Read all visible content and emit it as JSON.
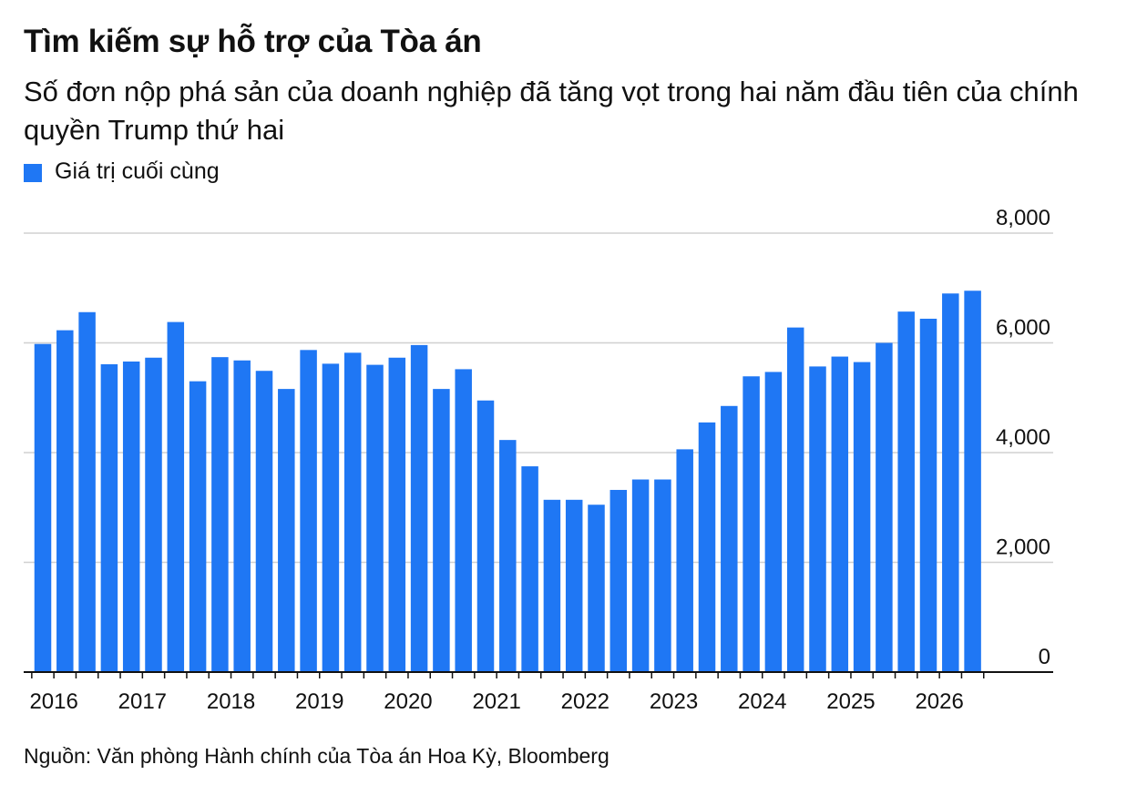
{
  "header": {
    "title": "Tìm kiếm sự hỗ trợ của Tòa án",
    "subtitle": "Số đơn nộp phá sản của doanh nghiệp đã tăng vọt trong hai năm đầu tiên của chính quyền Trump thứ hai"
  },
  "legend": {
    "label": "Giá trị cuối cùng"
  },
  "source": "Nguồn: Văn phòng Hành chính của Tòa án Hoa Kỳ, Bloomberg",
  "colors": {
    "bar": "#1f77f4",
    "grid": "#d0d0d0",
    "axis": "#111111"
  },
  "chart_data": {
    "type": "bar",
    "title": "Tìm kiếm sự hỗ trợ của Tòa án",
    "xlabel": "",
    "ylabel": "",
    "ylim": [
      0,
      8000
    ],
    "yticks": [
      0,
      2000,
      4000,
      6000,
      8000
    ],
    "ytick_labels": [
      "0",
      "2,000",
      "4,000",
      "6,000",
      "8,000"
    ],
    "y_axis_position": "right",
    "grid": true,
    "legend_position": "top-left",
    "year_labels": [
      "2016",
      "2017",
      "2018",
      "2019",
      "2020",
      "2021",
      "2022",
      "2023",
      "2024",
      "2025",
      "2026"
    ],
    "series": [
      {
        "name": "Giá trị cuối cùng",
        "values": [
          5980,
          6230,
          6560,
          5610,
          5660,
          5730,
          6380,
          5300,
          5740,
          5680,
          5490,
          5160,
          5870,
          5620,
          5820,
          5600,
          5730,
          5960,
          5160,
          5520,
          4950,
          4230,
          3750,
          3140,
          3140,
          3050,
          3320,
          3510,
          3510,
          4060,
          4550,
          4850,
          5390,
          5470,
          6280,
          5570,
          5750,
          5650,
          6000,
          6570,
          6440,
          6900,
          6950
        ]
      }
    ]
  }
}
